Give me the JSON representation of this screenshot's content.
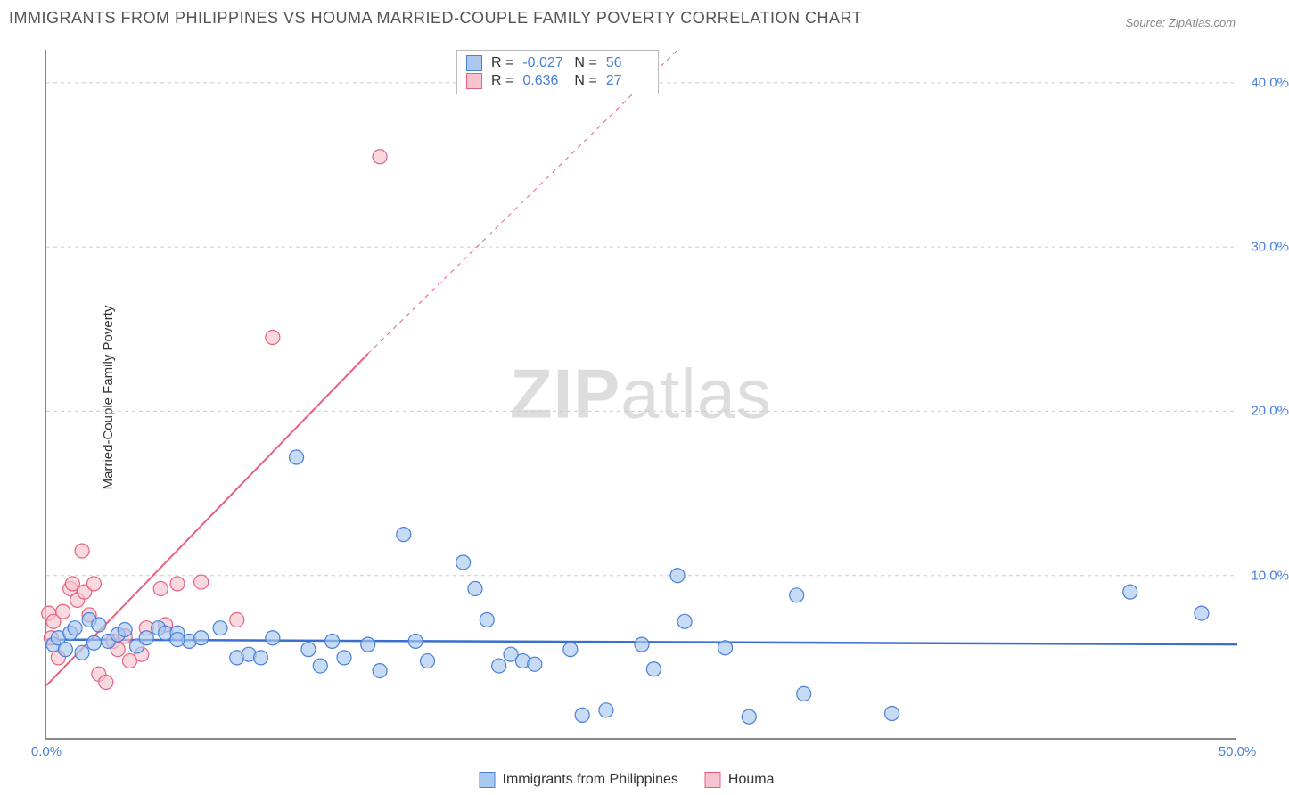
{
  "title": "IMMIGRANTS FROM PHILIPPINES VS HOUMA MARRIED-COUPLE FAMILY POVERTY CORRELATION CHART",
  "source": "Source: ZipAtlas.com",
  "watermark_a": "ZIP",
  "watermark_b": "atlas",
  "y_axis_label": "Married-Couple Family Poverty",
  "plot": {
    "x_min": 0,
    "x_max": 50,
    "y_min": 0,
    "y_max": 42,
    "x_ticks": [
      0,
      50
    ],
    "y_ticks": [
      10,
      20,
      30,
      40
    ],
    "x_tick_labels": [
      "0.0%",
      "50.0%"
    ],
    "y_tick_labels": [
      "10.0%",
      "20.0%",
      "30.0%",
      "40.0%"
    ],
    "grid_color": "#cccccc",
    "axis_color": "#888888",
    "marker_radius": 8,
    "marker_stroke_width": 1.2,
    "series_a": {
      "label": "Immigrants from Philippines",
      "fill": "#a9c7ef",
      "stroke": "#4a7fd8",
      "line_color": "#3a6fd0",
      "line_width": 2.5,
      "R": "-0.027",
      "N": "56",
      "trend": {
        "x1": 0,
        "y1": 6.1,
        "x2": 50,
        "y2": 5.8
      },
      "points": [
        [
          0.3,
          5.8
        ],
        [
          0.5,
          6.2
        ],
        [
          0.8,
          5.5
        ],
        [
          1.0,
          6.5
        ],
        [
          1.2,
          6.8
        ],
        [
          1.5,
          5.3
        ],
        [
          1.8,
          7.3
        ],
        [
          2.0,
          5.9
        ],
        [
          2.2,
          7.0
        ],
        [
          2.6,
          6.0
        ],
        [
          3.0,
          6.4
        ],
        [
          3.3,
          6.7
        ],
        [
          3.8,
          5.7
        ],
        [
          4.2,
          6.2
        ],
        [
          4.7,
          6.8
        ],
        [
          5.0,
          6.5
        ],
        [
          5.5,
          6.5
        ],
        [
          6.0,
          6.0
        ],
        [
          6.5,
          6.2
        ],
        [
          7.3,
          6.8
        ],
        [
          8.0,
          5.0
        ],
        [
          8.5,
          5.2
        ],
        [
          9.0,
          5.0
        ],
        [
          9.5,
          6.2
        ],
        [
          10.5,
          17.2
        ],
        [
          11.0,
          5.5
        ],
        [
          11.5,
          4.5
        ],
        [
          12.0,
          6.0
        ],
        [
          12.5,
          5.0
        ],
        [
          13.5,
          5.8
        ],
        [
          14.0,
          4.2
        ],
        [
          15.0,
          12.5
        ],
        [
          15.5,
          6.0
        ],
        [
          16.0,
          4.8
        ],
        [
          17.5,
          10.8
        ],
        [
          18.0,
          9.2
        ],
        [
          18.5,
          7.3
        ],
        [
          19.0,
          4.5
        ],
        [
          19.5,
          5.2
        ],
        [
          20.0,
          4.8
        ],
        [
          20.5,
          4.6
        ],
        [
          22.0,
          5.5
        ],
        [
          22.5,
          1.5
        ],
        [
          23.5,
          1.8
        ],
        [
          25.0,
          5.8
        ],
        [
          25.5,
          4.3
        ],
        [
          26.5,
          10.0
        ],
        [
          26.8,
          7.2
        ],
        [
          28.5,
          5.6
        ],
        [
          29.5,
          1.4
        ],
        [
          31.5,
          8.8
        ],
        [
          31.8,
          2.8
        ],
        [
          35.5,
          1.6
        ],
        [
          45.5,
          9.0
        ],
        [
          48.5,
          7.7
        ],
        [
          5.5,
          6.1
        ]
      ]
    },
    "series_b": {
      "label": "Houma",
      "fill": "#f6c4cf",
      "stroke": "#e8607e",
      "line_color": "#e8607e",
      "line_width": 2,
      "R": "0.636",
      "N": "27",
      "trend_solid": {
        "x1": 0,
        "y1": 3.3,
        "x2": 13.5,
        "y2": 23.5
      },
      "trend_dashed": {
        "x1": 13.5,
        "y1": 23.5,
        "x2": 26.5,
        "y2": 42.0
      },
      "points": [
        [
          0.1,
          7.7
        ],
        [
          0.2,
          6.2
        ],
        [
          0.3,
          7.2
        ],
        [
          0.5,
          5.0
        ],
        [
          0.7,
          7.8
        ],
        [
          1.0,
          9.2
        ],
        [
          1.1,
          9.5
        ],
        [
          1.3,
          8.5
        ],
        [
          1.5,
          11.5
        ],
        [
          1.6,
          9.0
        ],
        [
          1.8,
          7.6
        ],
        [
          2.0,
          9.5
        ],
        [
          2.2,
          4.0
        ],
        [
          2.5,
          3.5
        ],
        [
          2.8,
          6.0
        ],
        [
          3.0,
          5.5
        ],
        [
          3.3,
          6.3
        ],
        [
          3.5,
          4.8
        ],
        [
          4.0,
          5.2
        ],
        [
          4.2,
          6.8
        ],
        [
          4.8,
          9.2
        ],
        [
          5.0,
          7.0
        ],
        [
          5.5,
          9.5
        ],
        [
          6.5,
          9.6
        ],
        [
          8.0,
          7.3
        ],
        [
          9.5,
          24.5
        ],
        [
          14.0,
          35.5
        ]
      ]
    }
  },
  "stats_labels": {
    "R": "R =",
    "N": "N ="
  }
}
